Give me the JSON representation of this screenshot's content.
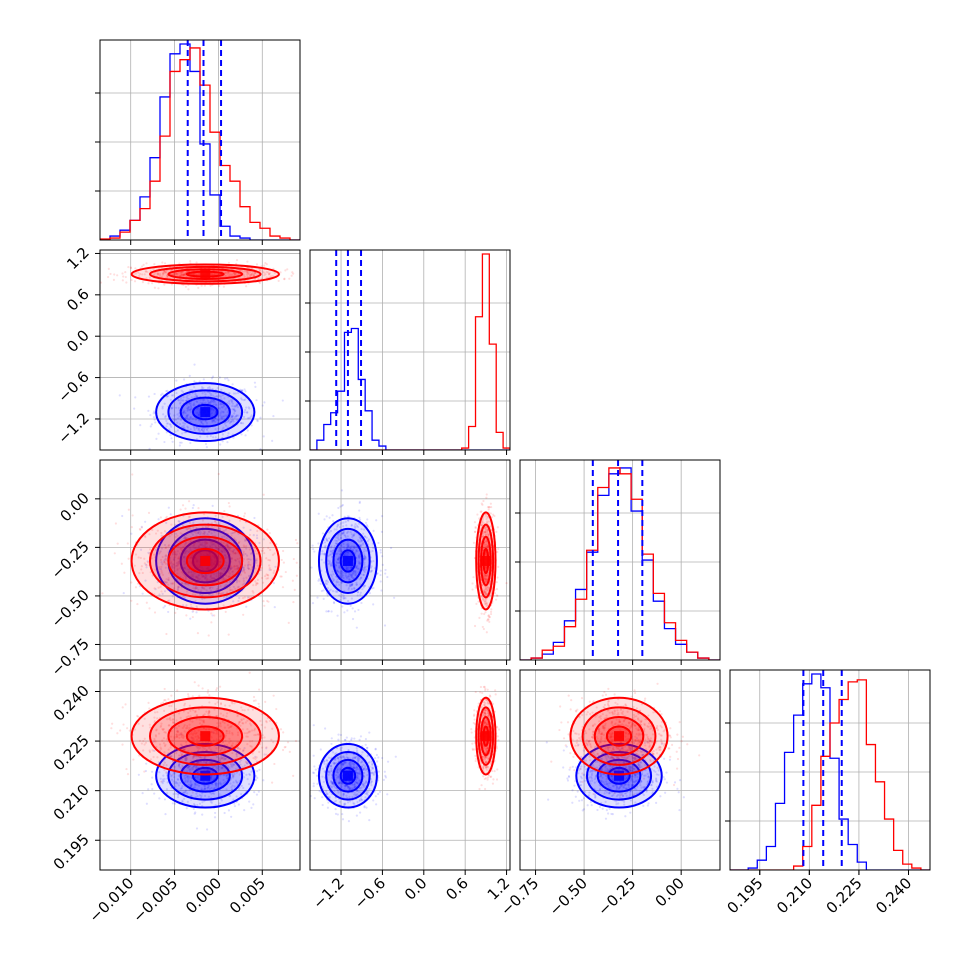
{
  "chart_data": {
    "type": "corner",
    "series": [
      {
        "name": "",
        "color": "#0000ff"
      },
      {
        "name": "",
        "color": "#ff0000"
      }
    ],
    "quantile_line_color": "#0000ff",
    "grid": true,
    "parameters": [
      {
        "range": [
          -0.0135,
          0.0093
        ],
        "ticks": [
          -0.01,
          -0.005,
          0.0,
          0.005
        ],
        "tick_labels": [
          "−0.010",
          "−0.005",
          "0.000",
          "0.005"
        ],
        "quantiles_blue": [
          -0.0035,
          -0.0017,
          0.0003
        ],
        "hist_blue": [
          0,
          0.02,
          0.05,
          0.1,
          0.22,
          0.42,
          0.73,
          0.95,
          1.0,
          0.86,
          0.49,
          0.23,
          0.07,
          0.02,
          0.01,
          0.0,
          0,
          0,
          0,
          0
        ],
        "hist_red": [
          0.005,
          0.01,
          0.04,
          0.1,
          0.16,
          0.3,
          0.53,
          0.86,
          0.92,
          0.98,
          0.79,
          0.55,
          0.38,
          0.3,
          0.17,
          0.09,
          0.06,
          0.02,
          0.01,
          0.0
        ]
      },
      {
        "range": [
          -1.65,
          1.25
        ],
        "ticks": [
          -1.2,
          -0.6,
          0.0,
          0.6,
          1.2
        ],
        "tick_labels": [
          "−1.2",
          "−0.6",
          "0.0",
          "0.6",
          "1.2"
        ],
        "quantiles_blue": [
          -1.27,
          -1.1,
          -0.91
        ],
        "hist_blue": [
          0,
          0.05,
          0.13,
          0.19,
          0.3,
          0.6,
          0.62,
          0.36,
          0.2,
          0.05,
          0.02,
          0,
          0,
          0,
          0,
          0,
          0,
          0,
          0,
          0,
          0,
          0,
          0,
          0,
          0,
          0,
          0,
          0,
          0
        ],
        "hist_red": [
          0,
          0,
          0,
          0,
          0,
          0,
          0,
          0,
          0,
          0,
          0,
          0,
          0,
          0,
          0,
          0,
          0,
          0,
          0,
          0,
          0,
          0,
          0.01,
          0.12,
          0.68,
          1.0,
          0.54,
          0.09,
          0.01
        ]
      },
      {
        "range": [
          -0.83,
          0.2
        ],
        "ticks": [
          -0.75,
          -0.5,
          -0.25,
          0.0
        ],
        "tick_labels": [
          "−0.75",
          "−0.50",
          "−0.25",
          "0.00"
        ],
        "quantiles_blue": [
          -0.455,
          -0.325,
          -0.2
        ],
        "hist_blue": [
          0.0,
          0.01,
          0.03,
          0.09,
          0.2,
          0.36,
          0.55,
          0.84,
          0.95,
          0.98,
          0.76,
          0.51,
          0.3,
          0.16,
          0.08,
          0.04,
          0.01,
          0.0
        ],
        "hist_red": [
          0.0,
          0.01,
          0.05,
          0.07,
          0.17,
          0.31,
          0.56,
          0.88,
          0.98,
          0.95,
          0.82,
          0.54,
          0.34,
          0.19,
          0.1,
          0.04,
          0.01,
          0.0
        ]
      },
      {
        "range": [
          0.186,
          0.2465
        ],
        "ticks": [
          0.195,
          0.21,
          0.225,
          0.24
        ],
        "tick_labels": [
          "0.195",
          "0.210",
          "0.225",
          "0.240"
        ],
        "quantiles_blue": [
          0.2082,
          0.2142,
          0.2198
        ],
        "hist_blue": [
          0,
          0,
          0.01,
          0.05,
          0.12,
          0.34,
          0.6,
          0.79,
          0.95,
          1.0,
          0.93,
          0.57,
          0.26,
          0.13,
          0.04,
          0.0,
          0,
          0,
          0,
          0,
          0,
          0
        ],
        "hist_red": [
          0,
          0,
          0,
          0,
          0,
          0,
          0,
          0.02,
          0.12,
          0.33,
          0.58,
          0.75,
          0.87,
          0.96,
          0.97,
          0.64,
          0.45,
          0.26,
          0.1,
          0.03,
          0.01,
          0.0
        ]
      }
    ],
    "pair_panels": [
      {
        "row": 1,
        "col": 0,
        "blue_mean": [
          -0.0015,
          -1.1
        ],
        "blue_sd": [
          0.0028,
          0.21
        ],
        "red_mean": [
          -0.0015,
          0.9
        ],
        "red_sd": [
          0.0042,
          0.07
        ]
      },
      {
        "row": 2,
        "col": 0,
        "blue_mean": [
          -0.0015,
          -0.32
        ],
        "blue_sd": [
          0.0028,
          0.11
        ],
        "red_mean": [
          -0.0015,
          -0.32
        ],
        "red_sd": [
          0.0042,
          0.125
        ]
      },
      {
        "row": 2,
        "col": 1,
        "blue_mean": [
          -1.1,
          -0.32
        ],
        "blue_sd": [
          0.21,
          0.11
        ],
        "red_mean": [
          0.9,
          -0.32
        ],
        "red_sd": [
          0.07,
          0.125
        ]
      },
      {
        "row": 3,
        "col": 0,
        "blue_mean": [
          -0.0015,
          0.2145
        ],
        "blue_sd": [
          0.0028,
          0.0048
        ],
        "red_mean": [
          -0.0015,
          0.2265
        ],
        "red_sd": [
          0.0042,
          0.0058
        ]
      },
      {
        "row": 3,
        "col": 1,
        "blue_mean": [
          -1.1,
          0.2145
        ],
        "blue_sd": [
          0.21,
          0.0048
        ],
        "red_mean": [
          0.9,
          0.2265
        ],
        "red_sd": [
          0.07,
          0.0058
        ]
      },
      {
        "row": 3,
        "col": 2,
        "blue_mean": [
          -0.32,
          0.2145
        ],
        "blue_sd": [
          0.11,
          0.0048
        ],
        "red_mean": [
          -0.32,
          0.2265
        ],
        "red_sd": [
          0.125,
          0.0058
        ]
      }
    ]
  }
}
